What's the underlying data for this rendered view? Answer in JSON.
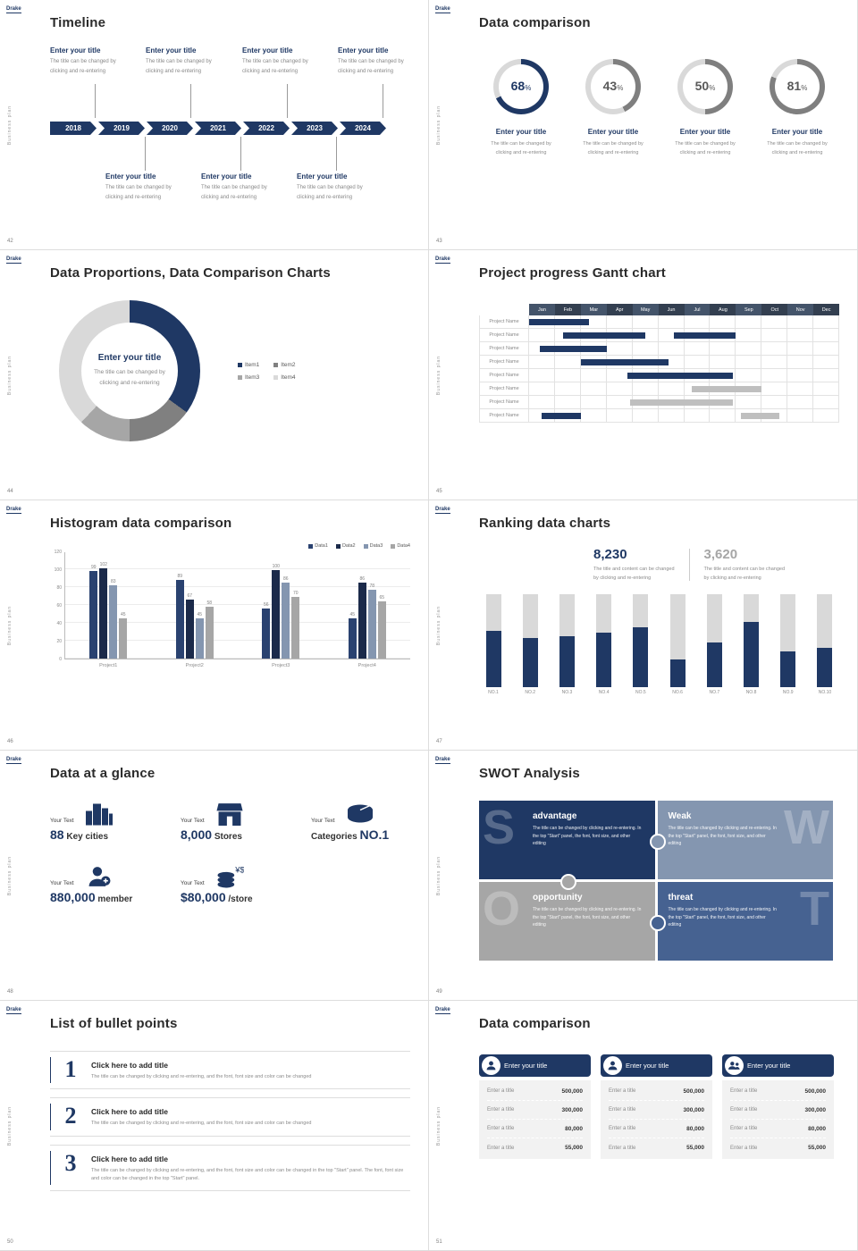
{
  "global": {
    "logo": "Drake",
    "side_text": "Business plan"
  },
  "slide42": {
    "number": "42",
    "title": "Timeline",
    "years": [
      "2018",
      "2019",
      "2020",
      "2021",
      "2022",
      "2023",
      "2024"
    ],
    "entry_title": "Enter your title",
    "entry_line1": "The title can be changed by",
    "entry_line2": "clicking and re-entering"
  },
  "slide43": {
    "number": "43",
    "title": "Data comparison",
    "item_title": "Enter your title",
    "item_line1": "The title can be changed by",
    "item_line2": "clicking and re-entering",
    "rings": [
      {
        "value": "68",
        "unit": "%",
        "percent": 68,
        "color": "#1F3864",
        "text_color": "#1F3864"
      },
      {
        "value": "43",
        "unit": "%",
        "percent": 43,
        "color": "#7F7F7F",
        "text_color": "#595959"
      },
      {
        "value": "50",
        "unit": "%",
        "percent": 50,
        "color": "#7F7F7F",
        "text_color": "#595959"
      },
      {
        "value": "81",
        "unit": "%",
        "percent": 81,
        "color": "#7F7F7F",
        "text_color": "#595959"
      }
    ]
  },
  "slide44": {
    "number": "44",
    "title": "Data Proportions, Data Comparison Charts",
    "center_title": "Enter your title",
    "center_line1": "The title can be changed by",
    "center_line2": "clicking and re-entering",
    "chart_data": {
      "type": "pie",
      "donut": true,
      "segments": [
        {
          "label": "Item1",
          "value": 35,
          "color": "#1F3864"
        },
        {
          "label": "Item2",
          "value": 15,
          "color": "#808080"
        },
        {
          "label": "Item3",
          "value": 12,
          "color": "#A6A6A6"
        },
        {
          "label": "Item4",
          "value": 38,
          "color": "#D9D9D9"
        }
      ]
    }
  },
  "slide45": {
    "number": "45",
    "title": "Project progress Gantt chart",
    "chart_data": {
      "type": "gantt",
      "months": [
        "Jan",
        "Feb",
        "Mar",
        "Apr",
        "May",
        "Jun",
        "Jul",
        "Aug",
        "Sep",
        "Oct",
        "Nov",
        "Dec"
      ],
      "row_label": "Project Name",
      "rows": 8,
      "bars": [
        {
          "row": 0,
          "start": 0,
          "span": 2.3,
          "color": "#1F3864"
        },
        {
          "row": 1,
          "start": 1.3,
          "span": 3.2,
          "color": "#1F3864"
        },
        {
          "row": 1,
          "start": 5.6,
          "span": 2.4,
          "color": "#1F3864"
        },
        {
          "row": 2,
          "start": 0.4,
          "span": 2.6,
          "color": "#1F3864"
        },
        {
          "row": 3,
          "start": 2.0,
          "span": 3.4,
          "color": "#1F3864"
        },
        {
          "row": 4,
          "start": 3.8,
          "span": 4.1,
          "color": "#1F3864"
        },
        {
          "row": 5,
          "start": 6.3,
          "span": 2.7,
          "color": "#BFBFBF"
        },
        {
          "row": 6,
          "start": 3.9,
          "span": 4.0,
          "color": "#BFBFBF"
        },
        {
          "row": 7,
          "start": 0.5,
          "span": 1.5,
          "color": "#1F3864"
        },
        {
          "row": 7,
          "start": 8.2,
          "span": 1.5,
          "color": "#BFBFBF"
        }
      ]
    }
  },
  "slide46": {
    "number": "46",
    "title": "Histogram data comparison",
    "chart_data": {
      "type": "bar",
      "categories": [
        "Project1",
        "Project2",
        "Project3",
        "Project4"
      ],
      "series": [
        {
          "name": "Data1",
          "color": "#2A4270",
          "values": [
            99,
            89,
            56,
            45
          ]
        },
        {
          "name": "Data2",
          "color": "#1B2A4A",
          "values": [
            102,
            67,
            100,
            86
          ]
        },
        {
          "name": "Data3",
          "color": "#8496B0",
          "values": [
            83,
            45,
            86,
            78
          ]
        },
        {
          "name": "Data4",
          "color": "#A6A6A6",
          "values": [
            45,
            58,
            70,
            65
          ]
        }
      ],
      "ylim": [
        0,
        120
      ],
      "yticks": [
        0,
        20,
        40,
        60,
        80,
        100,
        120
      ]
    }
  },
  "slide47": {
    "number": "47",
    "title": "Ranking data charts",
    "stat1": {
      "value": "8,230",
      "line1": "The title and content can be changed",
      "line2": "by clicking and re-entering"
    },
    "stat2": {
      "value": "3,620",
      "line1": "The title and content can be changed",
      "line2": "by clicking and re-entering"
    },
    "chart_data": {
      "type": "bar",
      "categories": [
        "NO.1",
        "NO.2",
        "NO.3",
        "NO.4",
        "NO.5",
        "NO.6",
        "NO.7",
        "NO.8",
        "NO.9",
        "NO.10"
      ],
      "values": [
        60,
        53,
        55,
        58,
        64,
        30,
        48,
        70,
        38,
        42
      ],
      "ylim": [
        0,
        100
      ],
      "track_color": "#D9D9D9",
      "bar_color": "#1F3864"
    }
  },
  "slide48": {
    "number": "48",
    "title": "Data at a glance",
    "items": [
      {
        "label": "Your Text",
        "pre": "",
        "big": "88",
        "post": " Key cities",
        "icon": "city-icon"
      },
      {
        "label": "Your Text",
        "pre": "",
        "big": "8,000",
        "post": " Stores",
        "icon": "store-icon"
      },
      {
        "label": "Your Text",
        "pre": "Categories ",
        "big": "NO.1",
        "post": "",
        "icon": "categories-icon"
      },
      {
        "label": "Your Text",
        "pre": "",
        "big": "880,000",
        "post": " member",
        "icon": "member-icon"
      },
      {
        "label": "Your Text",
        "pre": "",
        "big": "$80,000",
        "post": " /store",
        "icon": "coins-icon"
      }
    ]
  },
  "slide49": {
    "number": "49",
    "title": "SWOT Analysis",
    "quadrants": [
      {
        "letter": "S",
        "title": "advantage",
        "body": "The title can be changed by clicking and re-entering. In the top \"Start\" panel, the font, font size, and other editing",
        "color": "#1F3864"
      },
      {
        "letter": "W",
        "title": "Weak",
        "body": "The title can be changed by clicking and re-entering. In the top \"Start\" panel, the font, font size, and other editing",
        "color": "#8496B0"
      },
      {
        "letter": "O",
        "title": "opportunity",
        "body": "The title can be changed by clicking and re-entering. In the top \"Start\" panel, the font, font size, and other editing",
        "color": "#A6A6A6"
      },
      {
        "letter": "T",
        "title": "threat",
        "body": "The title can be changed by clicking and re-entering. In the top \"Start\" panel, the font, font size, and other editing",
        "color": "#466291"
      }
    ]
  },
  "slide50": {
    "number": "50",
    "title": "List of bullet points",
    "items": [
      {
        "num": "1",
        "title": "Click here to add title",
        "body": "The title can be changed by clicking and re-entering, and the font, font size and color can be changed"
      },
      {
        "num": "2",
        "title": "Click here to add title",
        "body": "The title can be changed by clicking and re-entering, and the font, font size and color can be changed"
      },
      {
        "num": "3",
        "title": "Click here to add title",
        "body": "The title can be changed by clicking and re-entering, and the font, font size and color can be changed in the top \"Start\" panel. The font, font size and color can be changed in the top \"Start\" panel."
      }
    ]
  },
  "slide51": {
    "number": "51",
    "title": "Data comparison",
    "cards": [
      {
        "header": "Enter your title",
        "icon": "person-badge-icon",
        "rows": [
          [
            "Enter a title",
            "500,000"
          ],
          [
            "Enter a title",
            "300,000"
          ],
          [
            "Enter a title",
            "80,000"
          ],
          [
            "Enter a title",
            "55,000"
          ]
        ]
      },
      {
        "header": "Enter your title",
        "icon": "person-icon",
        "rows": [
          [
            "Enter a title",
            "500,000"
          ],
          [
            "Enter a title",
            "300,000"
          ],
          [
            "Enter a title",
            "80,000"
          ],
          [
            "Enter a title",
            "55,000"
          ]
        ]
      },
      {
        "header": "Enter your title",
        "icon": "team-icon",
        "rows": [
          [
            "Enter a title",
            "500,000"
          ],
          [
            "Enter a title",
            "300,000"
          ],
          [
            "Enter a title",
            "80,000"
          ],
          [
            "Enter a title",
            "55,000"
          ]
        ]
      }
    ]
  }
}
